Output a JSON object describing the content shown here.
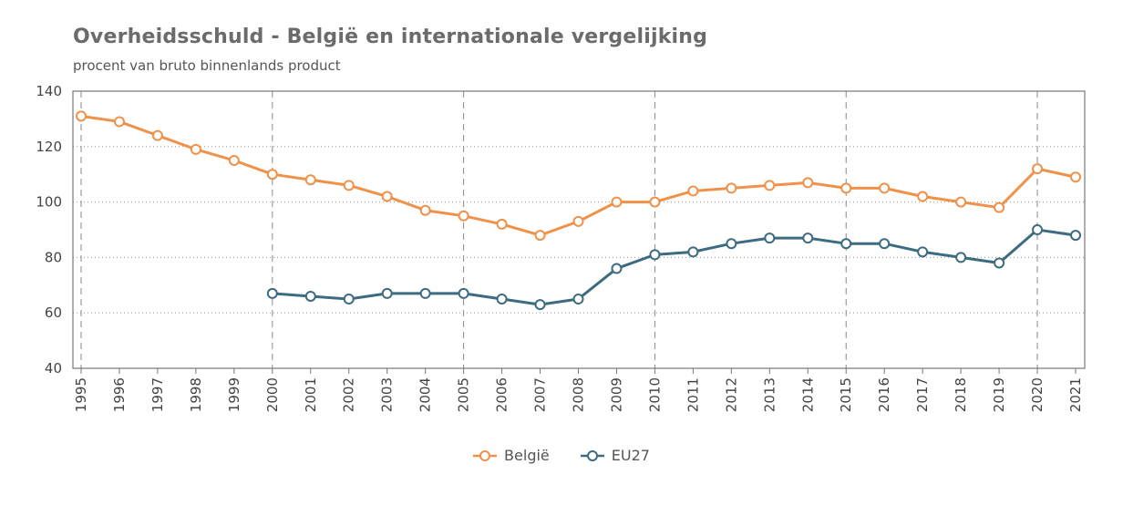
{
  "title": "Overheidsschuld - België en internationale vergelijking",
  "subtitle": "procent van bruto binnenlands product",
  "chart_data": {
    "type": "line",
    "x": [
      "1995",
      "1996",
      "1997",
      "1998",
      "1999",
      "2000",
      "2001",
      "2002",
      "2003",
      "2004",
      "2005",
      "2006",
      "2007",
      "2008",
      "2009",
      "2010",
      "2011",
      "2012",
      "2013",
      "2014",
      "2015",
      "2016",
      "2017",
      "2018",
      "2019",
      "2020",
      "2021"
    ],
    "ylim": [
      40,
      140
    ],
    "yticks": [
      "40",
      "60",
      "80",
      "100",
      "120",
      "140"
    ],
    "grid": true,
    "legend_position": "bottom",
    "series": [
      {
        "name": "België",
        "color": "#f0914a",
        "values": [
          131,
          129,
          124,
          119,
          115,
          110,
          108,
          106,
          102,
          97,
          95,
          92,
          88,
          93,
          100,
          100,
          104,
          105,
          106,
          107,
          105,
          105,
          102,
          100,
          98,
          112,
          109
        ]
      },
      {
        "name": "EU27",
        "color": "#3d6b7f",
        "values": [
          null,
          null,
          null,
          null,
          null,
          67,
          66,
          65,
          67,
          67,
          67,
          65,
          63,
          65,
          76,
          81,
          82,
          85,
          87,
          87,
          85,
          85,
          82,
          80,
          78,
          90,
          88
        ]
      }
    ]
  }
}
